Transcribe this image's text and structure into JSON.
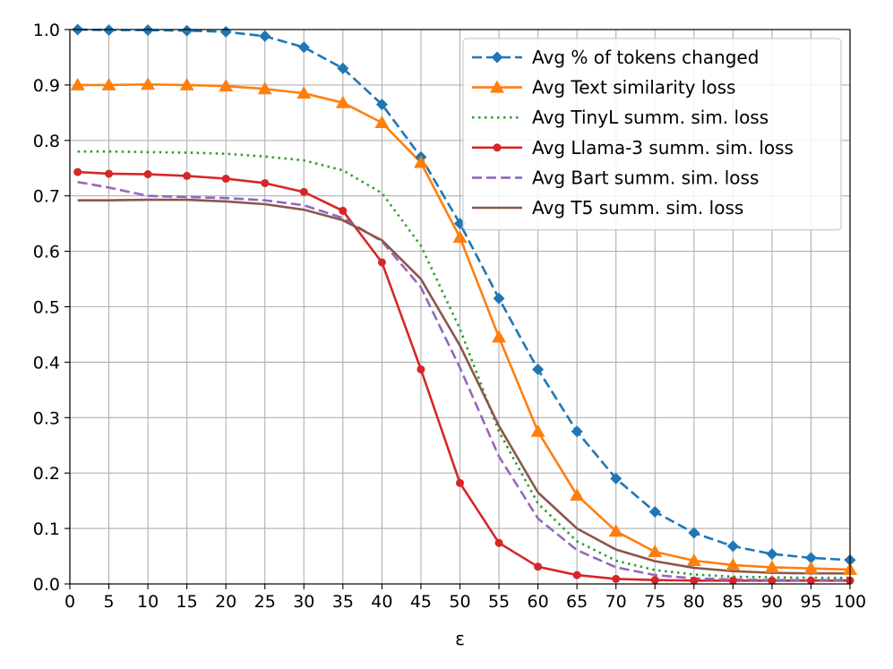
{
  "chart_data": {
    "type": "line",
    "title": "",
    "xlabel": "ε",
    "ylabel": "",
    "xlim": [
      0,
      100
    ],
    "ylim": [
      0,
      1.0
    ],
    "grid": true,
    "legend_position": "top-right",
    "xticks": [
      0,
      5,
      10,
      15,
      20,
      25,
      30,
      35,
      40,
      45,
      50,
      55,
      60,
      65,
      70,
      75,
      80,
      85,
      90,
      95,
      100
    ],
    "yticks": [
      0.0,
      0.1,
      0.2,
      0.3,
      0.4,
      0.5,
      0.6,
      0.7,
      0.8,
      0.9,
      1.0
    ],
    "xtick_labels": [
      "0",
      "5",
      "10",
      "15",
      "20",
      "25",
      "30",
      "35",
      "40",
      "45",
      "50",
      "55",
      "60",
      "65",
      "70",
      "75",
      "80",
      "85",
      "90",
      "95",
      "100"
    ],
    "ytick_labels": [
      "0.0",
      "0.1",
      "0.2",
      "0.3",
      "0.4",
      "0.5",
      "0.6",
      "0.7",
      "0.8",
      "0.9",
      "1.0"
    ],
    "x": [
      1,
      5,
      10,
      15,
      20,
      25,
      30,
      35,
      40,
      45,
      50,
      55,
      60,
      65,
      70,
      75,
      80,
      85,
      90,
      95,
      100
    ],
    "series": [
      {
        "name": "Avg % of tokens changed",
        "color": "#1f77b4",
        "dash": "dashed",
        "marker": "diamond",
        "values": [
          1.0,
          0.999,
          0.999,
          0.998,
          0.996,
          0.988,
          0.968,
          0.93,
          0.865,
          0.77,
          0.65,
          0.515,
          0.387,
          0.275,
          0.19,
          0.13,
          0.092,
          0.068,
          0.054,
          0.047,
          0.043
        ]
      },
      {
        "name": "Avg Text similarity loss",
        "color": "#ff7f0e",
        "dash": "solid",
        "marker": "triangle",
        "values": [
          0.9,
          0.9,
          0.901,
          0.9,
          0.898,
          0.893,
          0.885,
          0.868,
          0.832,
          0.76,
          0.625,
          0.445,
          0.275,
          0.16,
          0.095,
          0.058,
          0.042,
          0.034,
          0.03,
          0.028,
          0.026
        ]
      },
      {
        "name": "Avg TinyL summ. sim. loss",
        "color": "#2ca02c",
        "dash": "dotted",
        "marker": "none",
        "values": [
          0.78,
          0.78,
          0.779,
          0.778,
          0.776,
          0.771,
          0.764,
          0.746,
          0.705,
          0.61,
          0.46,
          0.275,
          0.145,
          0.077,
          0.042,
          0.025,
          0.017,
          0.013,
          0.012,
          0.011,
          0.011
        ]
      },
      {
        "name": "Avg Llama-3 summ. sim. loss",
        "color": "#d62728",
        "dash": "solid",
        "marker": "circle",
        "values": [
          0.743,
          0.74,
          0.739,
          0.736,
          0.731,
          0.723,
          0.707,
          0.673,
          0.58,
          0.387,
          0.182,
          0.074,
          0.031,
          0.016,
          0.009,
          0.007,
          0.006,
          0.006,
          0.006,
          0.006,
          0.006
        ]
      },
      {
        "name": "Avg Bart summ. sim. loss",
        "color": "#9467bd",
        "dash": "dashed",
        "marker": "none",
        "values": [
          0.725,
          0.715,
          0.7,
          0.698,
          0.696,
          0.692,
          0.683,
          0.66,
          0.618,
          0.535,
          0.39,
          0.23,
          0.118,
          0.061,
          0.03,
          0.016,
          0.01,
          0.008,
          0.007,
          0.007,
          0.007
        ]
      },
      {
        "name": "Avg T5 summ. sim. loss",
        "color": "#8c564b",
        "dash": "solid",
        "marker": "none",
        "values": [
          0.692,
          0.692,
          0.693,
          0.693,
          0.69,
          0.685,
          0.675,
          0.656,
          0.62,
          0.55,
          0.43,
          0.285,
          0.165,
          0.1,
          0.062,
          0.041,
          0.029,
          0.023,
          0.02,
          0.019,
          0.019
        ]
      }
    ]
  }
}
